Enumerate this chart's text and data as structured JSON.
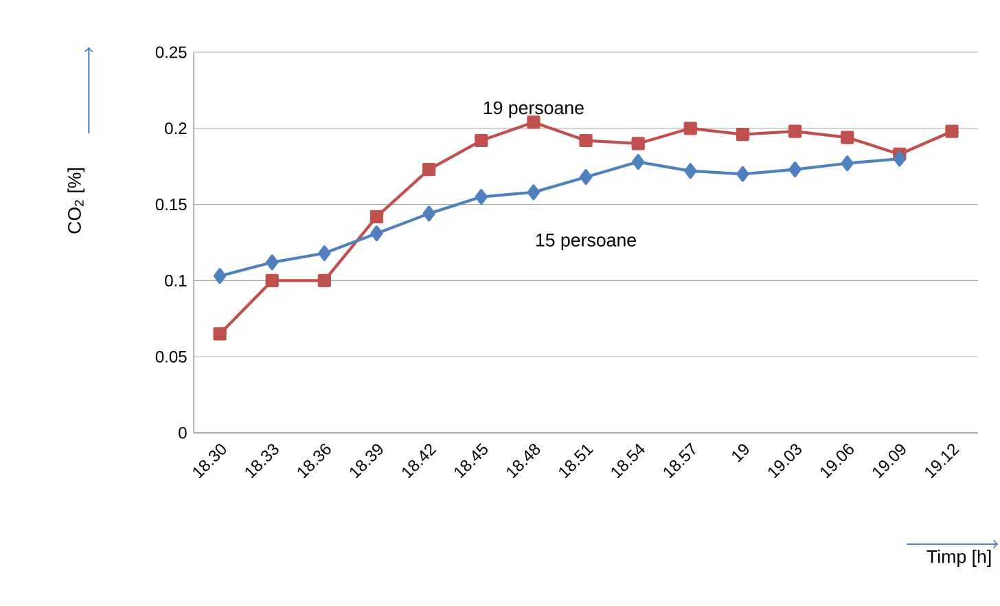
{
  "chart_data": {
    "type": "line",
    "ylabel": "CO$_{2}$ [%]",
    "xlabel": "Timp [h]",
    "categories": [
      "18.30",
      "18.33",
      "18.36",
      "18.39",
      "18.42",
      "18.45",
      "18.48",
      "18.51",
      "18.54",
      "18.57",
      "19",
      "19.03",
      "19.06",
      "19.09",
      "19.12"
    ],
    "ylim": [
      0,
      0.25
    ],
    "yticks": [
      0,
      0.05,
      0.1,
      0.15,
      0.2,
      0.25
    ],
    "grid": "y",
    "legend": false,
    "series": [
      {
        "name": "19 persoane",
        "color": "#c0504d",
        "marker": "square",
        "values": [
          0.065,
          0.1,
          0.1,
          0.142,
          0.173,
          0.192,
          0.204,
          0.192,
          0.19,
          0.2,
          0.196,
          0.198,
          0.194,
          0.183,
          0.198
        ]
      },
      {
        "name": "15 persoane",
        "color": "#4f81bd",
        "marker": "diamond",
        "values": [
          0.103,
          0.112,
          0.118,
          0.131,
          0.144,
          0.155,
          0.158,
          0.168,
          0.178,
          0.172,
          0.17,
          0.173,
          0.177,
          0.18,
          null
        ]
      }
    ]
  }
}
